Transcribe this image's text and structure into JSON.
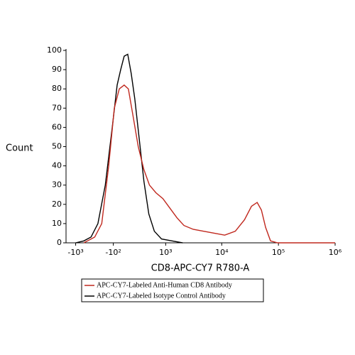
{
  "chart_data": {
    "type": "line",
    "xscale": "biexponential",
    "xlabel": "CD8-APC-CY7 R780-A",
    "ylabel": "Count",
    "xlim": [
      -1500,
      1000000
    ],
    "ylim": [
      0,
      100
    ],
    "xticks": [
      {
        "value": -1000,
        "label": "-10³"
      },
      {
        "value": -100,
        "label": "-10²"
      },
      {
        "value": 1000,
        "label": "10³"
      },
      {
        "value": 10000,
        "label": "10⁴"
      },
      {
        "value": 100000,
        "label": "10⁵"
      },
      {
        "value": 1000000,
        "label": "10⁶"
      }
    ],
    "yticks": [
      0,
      10,
      20,
      30,
      40,
      50,
      60,
      70,
      80,
      90,
      100
    ],
    "series": [
      {
        "name": "APC-CY7-Labeled Anti-Human CD8 Antibody",
        "color": "#c0281e",
        "x": [
          -700,
          -416,
          -280,
          -167,
          -86,
          -19,
          47,
          105,
          177,
          256,
          360,
          480,
          650,
          887,
          1197,
          1607,
          2145,
          3125,
          4785,
          7360,
          11300,
          17360,
          25200,
          33500,
          42200,
          50100,
          59400,
          72600,
          96400,
          1000000
        ],
        "values": [
          0,
          3,
          10,
          40,
          70,
          80,
          82,
          80,
          65,
          50,
          38,
          30,
          26,
          23,
          18,
          13,
          9,
          7,
          6,
          5,
          4,
          6,
          12,
          19,
          21,
          17,
          8,
          1,
          0,
          0
        ]
      },
      {
        "name": "APC-CY7-Labeled Isotype Control Antibody",
        "color": "#000000",
        "x": [
          -1000,
          -700,
          -500,
          -350,
          -220,
          -115,
          -47,
          0,
          47,
          96,
          146,
          199,
          269,
          360,
          465,
          607,
          835,
          1307,
          2026
        ],
        "values": [
          0,
          1,
          3,
          10,
          30,
          60,
          82,
          90,
          97,
          98,
          88,
          75,
          55,
          32,
          15,
          6,
          2,
          1,
          0
        ]
      }
    ]
  }
}
